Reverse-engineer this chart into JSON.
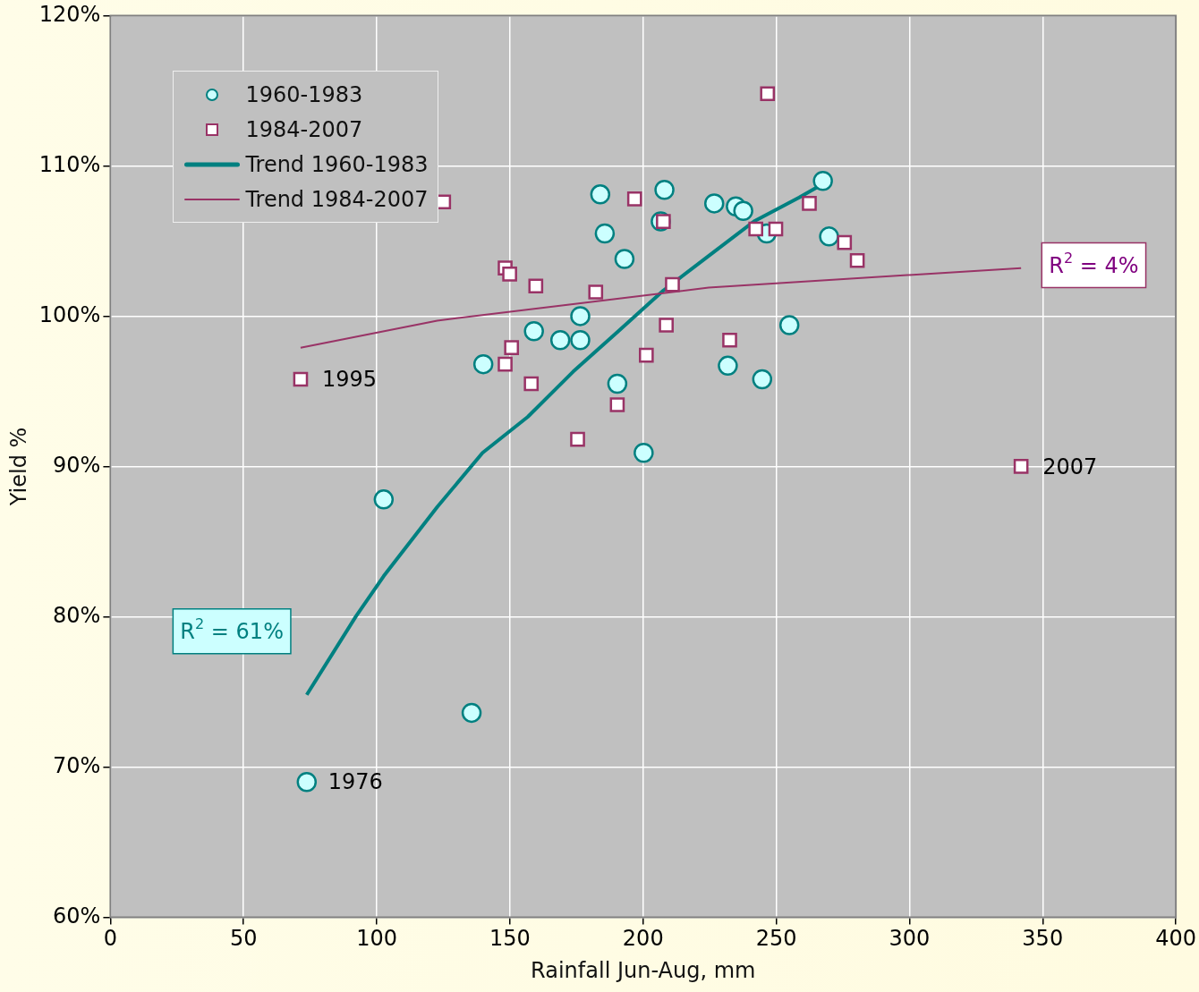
{
  "chart_data": {
    "type": "scatter",
    "xlabel": "Rainfall Jun-Aug, mm",
    "ylabel": "Yield %",
    "xlim": [
      0,
      400
    ],
    "xticks": [
      0,
      50,
      100,
      150,
      200,
      250,
      300,
      350,
      400
    ],
    "ylim": [
      60,
      120
    ],
    "yticks": [
      {
        "value": 60,
        "label": "60%"
      },
      {
        "value": 70,
        "label": "70%"
      },
      {
        "value": 80,
        "label": "80%"
      },
      {
        "value": 90,
        "label": "90%"
      },
      {
        "value": 100,
        "label": "100%"
      },
      {
        "value": 110,
        "label": "110%"
      },
      {
        "value": 120,
        "label": "120%"
      }
    ],
    "grid": true,
    "legend": "top left",
    "series": [
      {
        "name": "1960-1983",
        "type": "scatter",
        "marker": "circle",
        "color": "#008080",
        "x": [
          73.7,
          102.6,
          135.6,
          140.0,
          159.0,
          168.9,
          176.4,
          176.4,
          183.9,
          185.6,
          190.3,
          193.0,
          200.2,
          206.6,
          208.0,
          226.7,
          234.8,
          237.6,
          231.8,
          244.7,
          246.4,
          254.9,
          267.5,
          269.8
        ],
        "values": [
          69.0,
          87.8,
          73.6,
          96.8,
          99.0,
          98.4,
          100.0,
          98.4,
          108.1,
          105.5,
          95.5,
          103.8,
          90.9,
          106.3,
          108.4,
          107.5,
          107.3,
          107.0,
          96.7,
          95.8,
          105.5,
          99.4,
          109.0,
          105.3
        ]
      },
      {
        "name": "1984-2007",
        "type": "scatter",
        "marker": "square",
        "color": "#993366",
        "x": [
          71.4,
          125.1,
          148.2,
          149.9,
          148.2,
          150.6,
          158.0,
          159.7,
          175.4,
          182.2,
          190.3,
          196.8,
          207.6,
          201.2,
          208.7,
          211.0,
          232.5,
          242.3,
          246.7,
          249.8,
          262.4,
          275.6,
          280.4,
          341.9
        ],
        "values": [
          95.8,
          107.6,
          103.2,
          102.8,
          96.8,
          97.9,
          95.5,
          102.0,
          91.8,
          101.6,
          94.1,
          107.8,
          106.3,
          97.4,
          99.4,
          102.1,
          98.4,
          105.8,
          114.8,
          105.8,
          107.5,
          104.9,
          103.7,
          90.0
        ]
      },
      {
        "name": "Trend 1960-1983",
        "type": "line",
        "marker": "none",
        "color": "#008080",
        "x": [
          73.7,
          92.1,
          102.6,
          122.7,
          139.7,
          156.7,
          173.7,
          190.7,
          207.6,
          224.6,
          241.6,
          258.6,
          270.5
        ],
        "values": [
          74.8,
          80.0,
          82.7,
          87.3,
          90.9,
          93.3,
          96.3,
          99.0,
          101.7,
          104.0,
          106.3,
          107.9,
          109.1
        ]
      },
      {
        "name": "Trend 1984-2007",
        "type": "line",
        "marker": "none",
        "color": "#993366",
        "x": [
          71.4,
          122.7,
          173.7,
          224.6,
          341.9
        ],
        "values": [
          97.9,
          99.7,
          100.8,
          101.9,
          103.2
        ]
      }
    ],
    "annotations": [
      "R$^{2}$ = 61%",
      "R$^{2}$ = 4%",
      {
        "text": "1976",
        "x": 73.7,
        "y": 69.0
      },
      {
        "text": "1995",
        "x": 71.4,
        "y": 95.8
      },
      {
        "text": "2007",
        "x": 341.9,
        "y": 90.0
      }
    ]
  }
}
